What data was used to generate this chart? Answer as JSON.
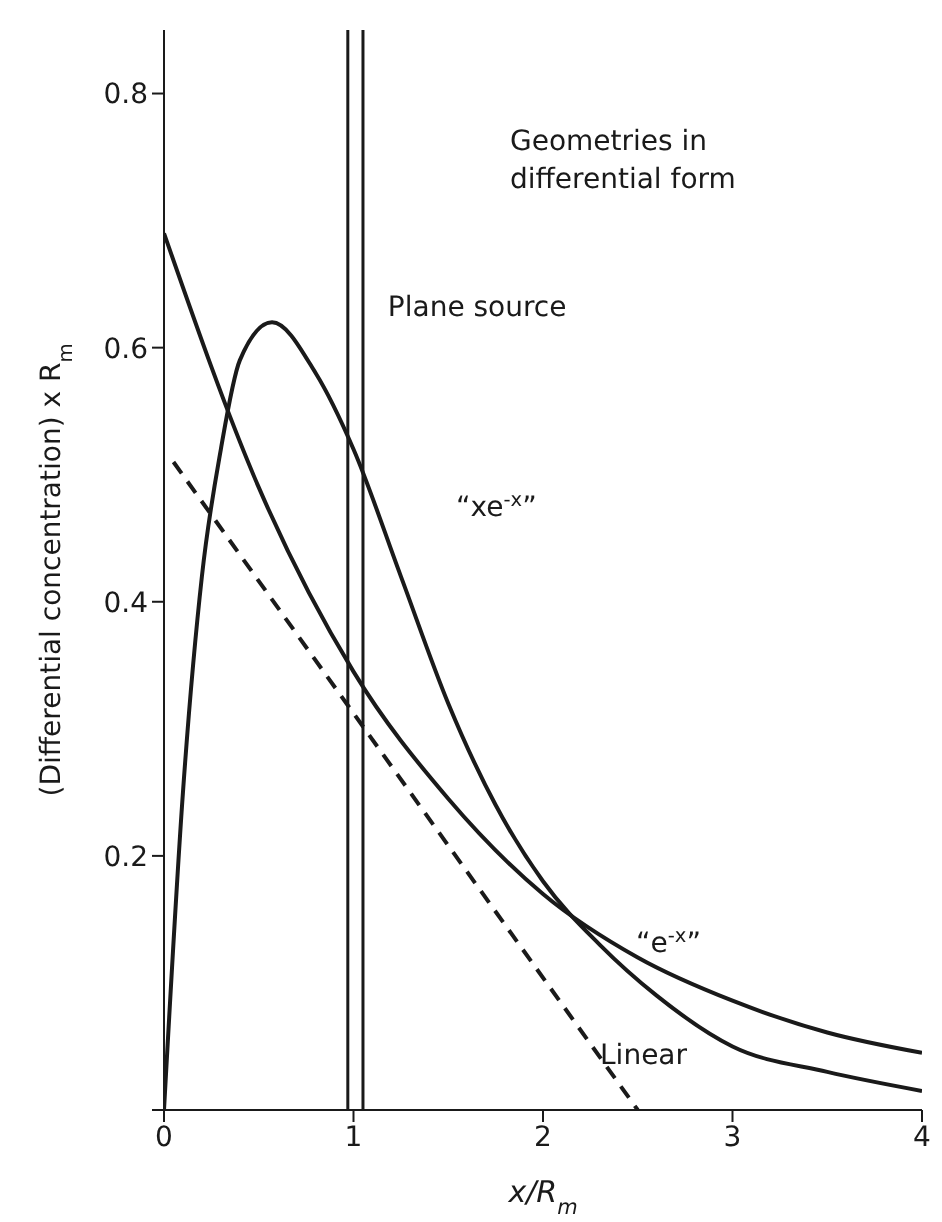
{
  "chart_data": {
    "type": "line",
    "xlabel": "x/R$_{m}$",
    "ylabel": "(Differential concentration) x R$_{m}$",
    "annotations": [
      "Geometries in differential form"
    ],
    "xlim": [
      0,
      4
    ],
    "xticks": [
      0,
      1,
      2,
      3,
      4
    ],
    "ylim": [
      0,
      0.85
    ],
    "yticks": [
      {
        "value": 0,
        "label": null
      },
      {
        "value": 0.2,
        "label": "0.2"
      },
      {
        "value": 0.4,
        "label": "0.4"
      },
      {
        "value": 0.6,
        "label": "0.6"
      },
      {
        "value": 0.8,
        "label": "0.8"
      }
    ],
    "marker": "none",
    "ref_lines": [
      {
        "axis": "x",
        "value": 0.97,
        "label": "Plane source",
        "color": "#1a1a1a"
      },
      {
        "axis": "x",
        "value": 1.05,
        "label": null,
        "color": "#1a1a1a"
      }
    ],
    "series": [
      {
        "name": "“xe$^{-x}$”",
        "color": "#1a1a1a",
        "line_style": "solid",
        "x": [
          0,
          0.1,
          0.2,
          0.3,
          0.4,
          0.57,
          0.8,
          1,
          1.25,
          1.5,
          1.75,
          2,
          2.3,
          2.6,
          3,
          3.5,
          4
        ],
        "values": [
          0,
          0.25,
          0.42,
          0.52,
          0.59,
          0.62,
          0.58,
          0.52,
          0.42,
          0.32,
          0.24,
          0.18,
          0.13,
          0.09,
          0.05,
          0.03,
          0.015
        ]
      },
      {
        "name": "“e$^{-x}$”",
        "color": "#1a1a1a",
        "line_style": "solid",
        "x": [
          0,
          0.5,
          1,
          1.5,
          2,
          2.5,
          3,
          3.5,
          4
        ],
        "values": [
          0.69,
          0.49,
          0.345,
          0.245,
          0.17,
          0.12,
          0.086,
          0.061,
          0.045
        ]
      },
      {
        "name": "Linear",
        "color": "#1a1a1a",
        "line_style": "dashed",
        "x": [
          0.05,
          2.5
        ],
        "values": [
          0.51,
          0
        ]
      }
    ]
  }
}
